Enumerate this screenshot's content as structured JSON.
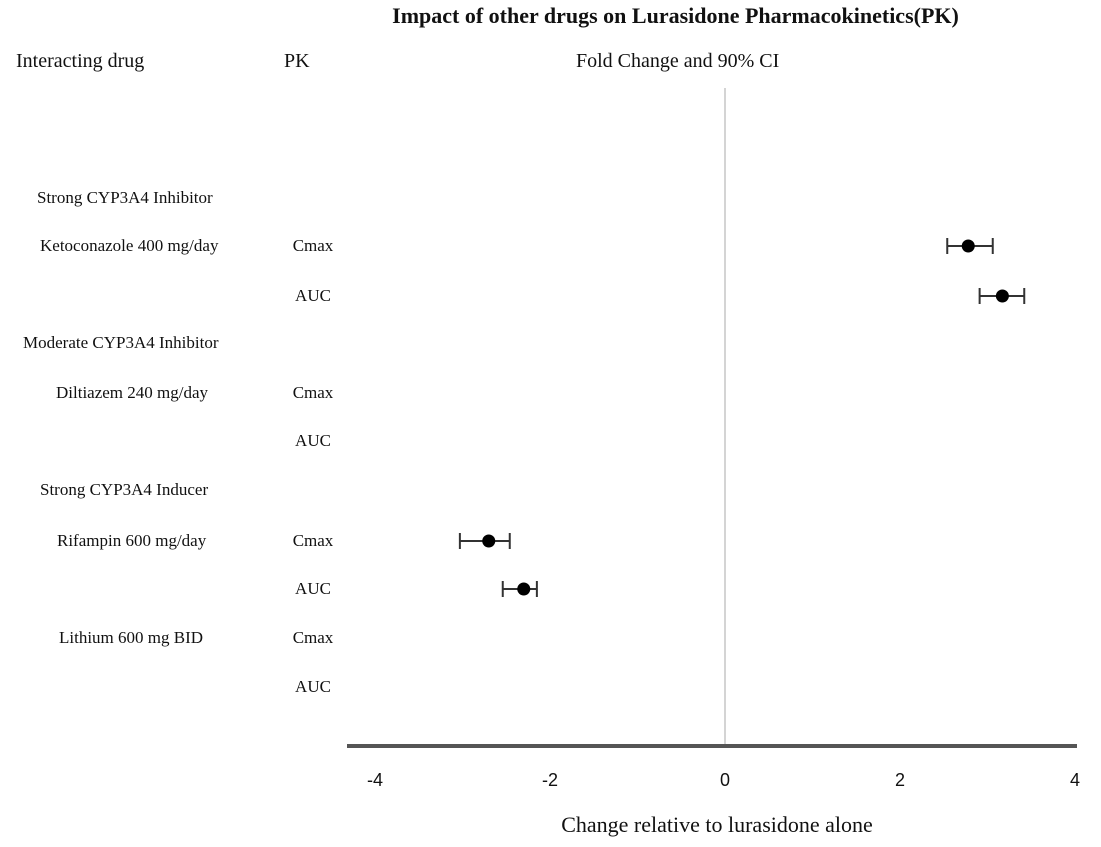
{
  "chart_data": {
    "type": "forest",
    "title": "Impact of other drugs on Lurasidone  Pharmacokinetics(PK)",
    "column_headers": {
      "drug": "Interacting  drug",
      "pk": "PK",
      "plot": "Fold Change and 90% CI"
    },
    "xlabel": "Change relative to lurasidone alone",
    "xlim": [
      -4,
      4
    ],
    "xticks": [
      "-4",
      "-2",
      "0",
      "2",
      "4"
    ],
    "reference_line": 0,
    "rows": [
      {
        "label": "Strong CYP3A4  Inhibitor",
        "kind": "group",
        "pk": ""
      },
      {
        "label": "Ketoconazole 400 mg/day",
        "kind": "drug",
        "pk": "Cmax",
        "value": 2.78,
        "ci": [
          2.54,
          3.06
        ]
      },
      {
        "label": "",
        "kind": "drug",
        "pk": "AUC",
        "value": 3.17,
        "ci": [
          2.91,
          3.42
        ]
      },
      {
        "label": "Moderate CYP3A4  Inhibitor",
        "kind": "group",
        "pk": ""
      },
      {
        "label": "Diltiazem 240  mg/day",
        "kind": "drug",
        "pk": "Cmax"
      },
      {
        "label": "",
        "kind": "drug",
        "pk": "AUC"
      },
      {
        "label": "Strong CYP3A4  Inducer",
        "kind": "group",
        "pk": ""
      },
      {
        "label": "Rifampin 600  mg/day",
        "kind": "drug",
        "pk": "Cmax",
        "value": -2.7,
        "ci": [
          -3.03,
          -2.46
        ]
      },
      {
        "label": "",
        "kind": "drug",
        "pk": "AUC",
        "value": -2.3,
        "ci": [
          -2.54,
          -2.15
        ]
      },
      {
        "label": "Lithium  600 mg BID",
        "kind": "drug",
        "pk": "Cmax"
      },
      {
        "label": "",
        "kind": "drug",
        "pk": "AUC"
      }
    ],
    "colors": {
      "marker": "#000000",
      "axis": "#555555",
      "refline": "#aaaaaa"
    }
  }
}
